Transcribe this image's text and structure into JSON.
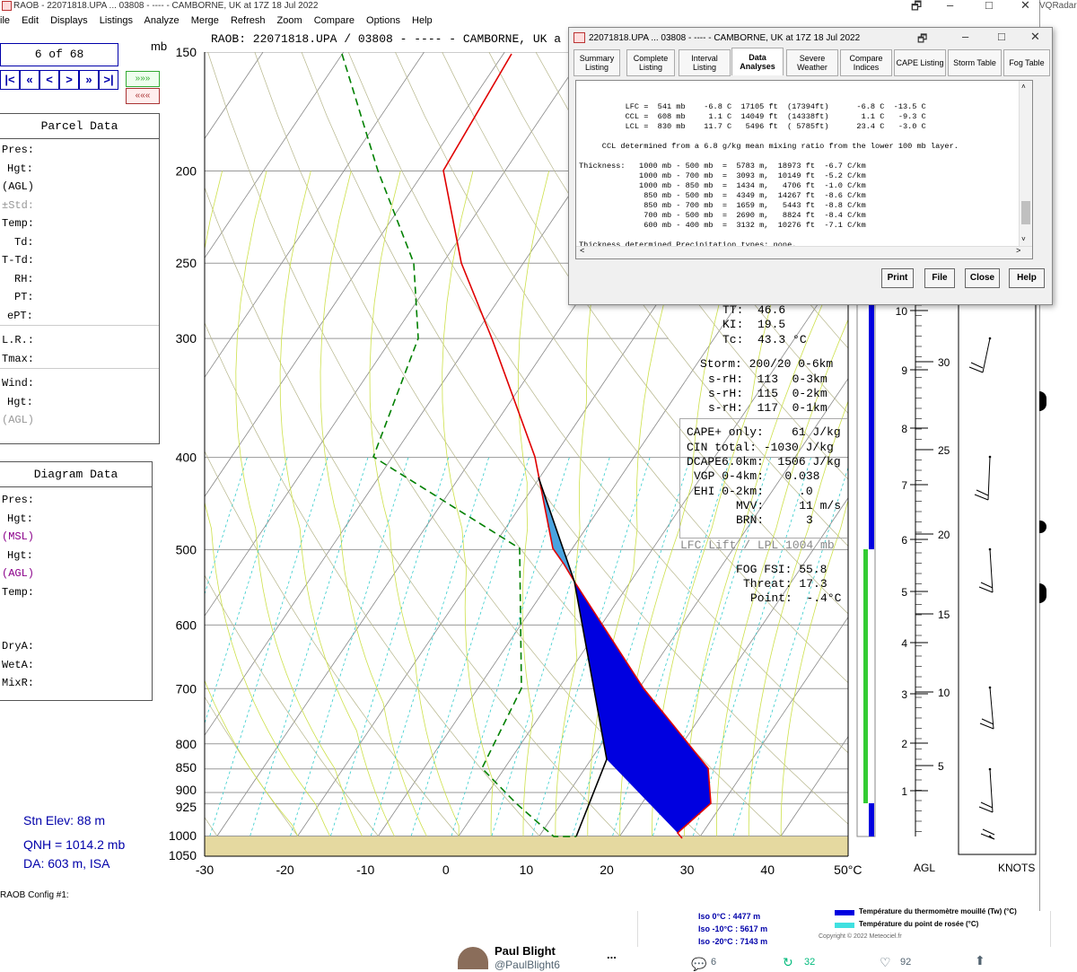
{
  "window": {
    "title": "RAOB - 22071818.UPA ... 03808 - ---- - CAMBORNE, UK at 17Z 18 Jul 2022",
    "menu": [
      "ile",
      "Edit",
      "Displays",
      "Listings",
      "Analyze",
      "Merge",
      "Refresh",
      "Zoom",
      "Compare",
      "Options",
      "Help"
    ],
    "behind_text": "VQRadar"
  },
  "header": {
    "raob": "RAOB:  22071818.UPA / 03808 - ---- - CAMBORNE, UK a",
    "mb": "mb",
    "counter": "6 of 68"
  },
  "nav": [
    "|<",
    "«",
    "<",
    ">",
    "»",
    ">|"
  ],
  "parcel": {
    "title": "Parcel Data",
    "rows": [
      "Pres:",
      "Hgt:",
      "(AGL)",
      "±Std:",
      "Temp:",
      "Td:",
      "T-Td:",
      "RH:",
      "PT:",
      "ePT:",
      "L.R.:",
      "Tmax:",
      "Wind:",
      "Hgt:",
      "(AGL)"
    ]
  },
  "diagram": {
    "title": "Diagram Data",
    "rows": [
      "Pres:",
      "Hgt:",
      "(MSL)",
      "Hgt:",
      "(AGL)",
      "Temp:",
      "DryA:",
      "WetA:",
      "MixR:"
    ]
  },
  "station": {
    "elev": "Stn Elev: 88 m",
    "qnh": "QNH = 1014.2 mb",
    "da": "DA: 603 m, ISA"
  },
  "config": "RAOB Config #1:",
  "pressure_labels": [
    "150",
    "200",
    "250",
    "300",
    "400",
    "500",
    "600",
    "700",
    "800",
    "850",
    "900",
    "925",
    "1000",
    "1050"
  ],
  "temp_labels": [
    "-30",
    "-20",
    "-10",
    "0",
    "10",
    "20",
    "30",
    "40",
    "50°C"
  ],
  "indices": {
    "tt": "TT:  46.6",
    "ki": "KI:  19.5",
    "tc": "Tc:  43.3 °C",
    "storm": "Storm: 200/20 0-6km",
    "srh3": "s-rH:  113  0-3km",
    "srh2": "s-rH:  115  0-2km",
    "srh1": "s-rH:  117  0-1km",
    "cape": "CAPE+ only:    61 J/kg",
    "cin": "CIN total: -1030 J/kg",
    "dcape": "DCAPE6.0km:  1506 J/kg",
    "vgp": "VGP 0-4km:   0.038",
    "ehi": "EHI 0-2km:     .0",
    "mvv": "MVV:     11 m/s",
    "brn": "BRN:      3",
    "lfc": "LFC Lift / LPL 1004 mb",
    "fog": "FOG FSI: 55.8",
    "threat": "Threat: 17.3",
    "point": "Point:  -.4°C"
  },
  "height_scale": {
    "km": [
      "10",
      "9",
      "8",
      "7",
      "6",
      "5",
      "4",
      "3",
      "2",
      "1"
    ],
    "kft": [
      "30",
      "25",
      "20",
      "15",
      "10",
      "5"
    ],
    "agl": "AGL",
    "knots": "KNOTS"
  },
  "dialog": {
    "title": "22071818.UPA ... 03808 - ---- - CAMBORNE, UK  at 17Z 18 Jul 2022",
    "tabs": [
      "Summary Listing",
      "Complete Listing",
      "Interval Listing",
      "Data Analyses",
      "Severe Weather",
      "Compare Indices",
      "CAPE Listing",
      "Storm Table",
      "Fog Table"
    ],
    "listing": [
      "          LFC =  541 mb    -6.8 C  17105 ft  (17394ft)      -6.8 C  -13.5 C",
      "          CCL =  608 mb     1.1 C  14049 ft  (14338ft)       1.1 C   -9.3 C",
      "          LCL =  830 mb    11.7 C   5496 ft  ( 5785ft)      23.4 C   -3.0 C",
      "",
      "     CCL determined from a 6.8 g/kg mean mixing ratio from the lower 100 mb layer.",
      "",
      "Thickness:   1000 mb - 500 mb  =  5783 m,  18973 ft  -6.7 C/km",
      "             1000 mb - 700 mb  =  3093 m,  10149 ft  -5.2 C/km",
      "             1000 mb - 850 mb  =  1434 m,   4706 ft  -1.0 C/km",
      "              850 mb - 500 mb  =  4349 m,  14267 ft  -8.6 C/km",
      "              850 mb - 700 mb  =  1659 m,   5443 ft  -8.8 C/km",
      "              700 mb - 500 mb  =  2690 m,   8824 ft  -8.4 C/km",
      "              600 mb - 400 mb  =  3132 m,  10276 ft  -7.1 C/km",
      "",
      "Thickness determined Precipitation types: none."
    ],
    "buttons": [
      "Print",
      "File",
      "Close",
      "Help"
    ]
  },
  "legend": {
    "iso0": "Iso 0°C : 4477 m",
    "iso10": "Iso -10°C : 5617 m",
    "iso20": "Iso -20°C : 7143 m",
    "wet": "Température du thermomètre mouillé (Tw) (°C)",
    "dew": "Température du point de rosée (°C)",
    "copyright": "Copyright © 2022 Meteociel.fr"
  },
  "tweet": {
    "name": "Paul Blight",
    "handle": "@PaulBlight6",
    "replies": "6",
    "retweets": "32",
    "likes": "92",
    "more": "..."
  },
  "colors": {
    "temp": "#e00000",
    "dew": "#008000",
    "cape": "#0000e0",
    "cin_light": "#4aa3df",
    "ground": "#e5d9a0"
  }
}
